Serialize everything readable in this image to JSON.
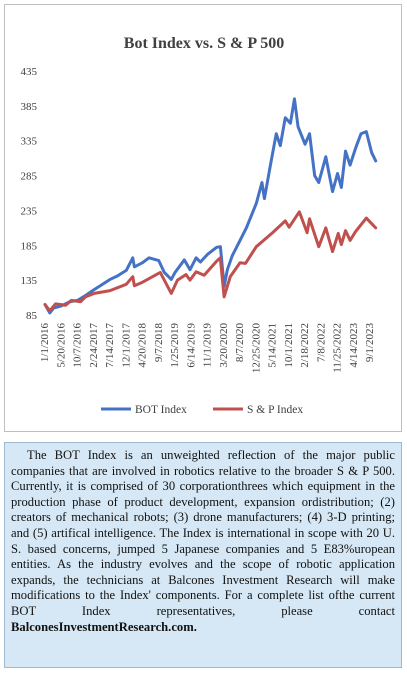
{
  "chart_data": {
    "type": "line",
    "title": "Bot Index vs. S & P 500",
    "xlabel": "",
    "ylabel": "",
    "ylim": [
      85,
      435
    ],
    "yticks": [
      85,
      135,
      185,
      235,
      285,
      335,
      385,
      435
    ],
    "xticks": [
      "1/1/2016",
      "5/20/2016",
      "10/7/2016",
      "2/24/2017",
      "7/14/2017",
      "12/1/2017",
      "4/20/2018",
      "9/7/2018",
      "1/25/2019",
      "6/14/2019",
      "11/1/2019",
      "3/20/2020",
      "8/7/2020",
      "12/25/2020",
      "5/14/2021",
      "10/1/2021",
      "2/18/2022",
      "7/8/2022",
      "11/25/2022",
      "4/14/2023",
      "9/1/2023"
    ],
    "xlim": [
      "2016-01-01",
      "2023-10-31"
    ],
    "grid": false,
    "legend_position": "bottom",
    "series": [
      {
        "name": "BOT Index",
        "color": "#4472c4",
        "points": [
          [
            "2016-01-01",
            100
          ],
          [
            "2016-02-11",
            88
          ],
          [
            "2016-03-15",
            95
          ],
          [
            "2016-05-20",
            98
          ],
          [
            "2016-08-01",
            104
          ],
          [
            "2016-10-07",
            106
          ],
          [
            "2016-12-15",
            113
          ],
          [
            "2017-02-24",
            121
          ],
          [
            "2017-05-01",
            128
          ],
          [
            "2017-07-14",
            136
          ],
          [
            "2017-09-15",
            141
          ],
          [
            "2017-12-01",
            149
          ],
          [
            "2018-01-26",
            167
          ],
          [
            "2018-02-09",
            154
          ],
          [
            "2018-04-20",
            160
          ],
          [
            "2018-06-15",
            167
          ],
          [
            "2018-09-07",
            163
          ],
          [
            "2018-10-25",
            146
          ],
          [
            "2018-12-24",
            136
          ],
          [
            "2019-01-25",
            146
          ],
          [
            "2019-04-15",
            164
          ],
          [
            "2019-06-03",
            150
          ],
          [
            "2019-07-26",
            167
          ],
          [
            "2019-09-01",
            161
          ],
          [
            "2019-11-01",
            172
          ],
          [
            "2020-01-17",
            182
          ],
          [
            "2020-02-20",
            183
          ],
          [
            "2020-03-23",
            126
          ],
          [
            "2020-04-20",
            150
          ],
          [
            "2020-06-01",
            170
          ],
          [
            "2020-08-07",
            192
          ],
          [
            "2020-10-01",
            210
          ],
          [
            "2020-12-25",
            245
          ],
          [
            "2021-02-12",
            275
          ],
          [
            "2021-03-05",
            252
          ],
          [
            "2021-04-26",
            300
          ],
          [
            "2021-06-15",
            345
          ],
          [
            "2021-07-20",
            328
          ],
          [
            "2021-09-01",
            368
          ],
          [
            "2021-10-15",
            360
          ],
          [
            "2021-11-19",
            395
          ],
          [
            "2021-12-20",
            355
          ],
          [
            "2022-02-18",
            330
          ],
          [
            "2022-03-29",
            345
          ],
          [
            "2022-05-12",
            285
          ],
          [
            "2022-06-16",
            275
          ],
          [
            "2022-08-16",
            312
          ],
          [
            "2022-10-13",
            262
          ],
          [
            "2022-11-25",
            288
          ],
          [
            "2022-12-28",
            268
          ],
          [
            "2023-02-02",
            320
          ],
          [
            "2023-03-13",
            300
          ],
          [
            "2023-05-01",
            325
          ],
          [
            "2023-06-15",
            345
          ],
          [
            "2023-07-31",
            348
          ],
          [
            "2023-09-15",
            318
          ],
          [
            "2023-10-20",
            306
          ]
        ]
      },
      {
        "name": "S & P Index",
        "color": "#c0504d",
        "points": [
          [
            "2016-01-01",
            100
          ],
          [
            "2016-02-11",
            91
          ],
          [
            "2016-04-01",
            101
          ],
          [
            "2016-06-27",
            99
          ],
          [
            "2016-08-15",
            106
          ],
          [
            "2016-11-03",
            104
          ],
          [
            "2016-12-15",
            111
          ],
          [
            "2017-03-01",
            116
          ],
          [
            "2017-07-14",
            120
          ],
          [
            "2017-12-01",
            129
          ],
          [
            "2018-01-26",
            140
          ],
          [
            "2018-02-09",
            127
          ],
          [
            "2018-04-20",
            132
          ],
          [
            "2018-09-20",
            146
          ],
          [
            "2018-12-24",
            116
          ],
          [
            "2019-02-15",
            135
          ],
          [
            "2019-04-30",
            143
          ],
          [
            "2019-06-03",
            135
          ],
          [
            "2019-07-26",
            147
          ],
          [
            "2019-10-03",
            142
          ],
          [
            "2020-01-17",
            162
          ],
          [
            "2020-02-19",
            167
          ],
          [
            "2020-03-23",
            111
          ],
          [
            "2020-05-15",
            140
          ],
          [
            "2020-08-07",
            160
          ],
          [
            "2020-09-23",
            159
          ],
          [
            "2020-12-25",
            183
          ],
          [
            "2021-05-14",
            203
          ],
          [
            "2021-09-01",
            220
          ],
          [
            "2021-10-04",
            211
          ],
          [
            "2021-12-31",
            233
          ],
          [
            "2022-03-08",
            203
          ],
          [
            "2022-03-29",
            223
          ],
          [
            "2022-06-16",
            183
          ],
          [
            "2022-08-16",
            210
          ],
          [
            "2022-10-13",
            176
          ],
          [
            "2022-12-01",
            202
          ],
          [
            "2022-12-28",
            186
          ],
          [
            "2023-02-02",
            206
          ],
          [
            "2023-03-13",
            192
          ],
          [
            "2023-05-01",
            205
          ],
          [
            "2023-07-31",
            224
          ],
          [
            "2023-09-15",
            216
          ],
          [
            "2023-10-20",
            210
          ]
        ]
      }
    ]
  },
  "description": {
    "text": "The BOT Index is an unweighted reflection of the major public companies that are involved in robotics relative to the broader S & P 500. Currently, it is comprised of 30 corporationthrees which equipment in the production phase of product development, expansion ordistribution; (2) creators of mechanical robots; (3) drone manufacturers; (4) 3-D printing; and (5) artifical intelligence. The Index is international in scope with 20 U. S. based concerns, jumped 5 Japanese companies and 5 E83%uropean entities. As the industry evolves and the scope of robotic application expands, the technicians at Balcones Investment Research will make modifications to the Index' components. For a complete list ofthe current BOT Index representatives, please contact",
    "link_text": "BalconesInvestmentResearch.com."
  }
}
